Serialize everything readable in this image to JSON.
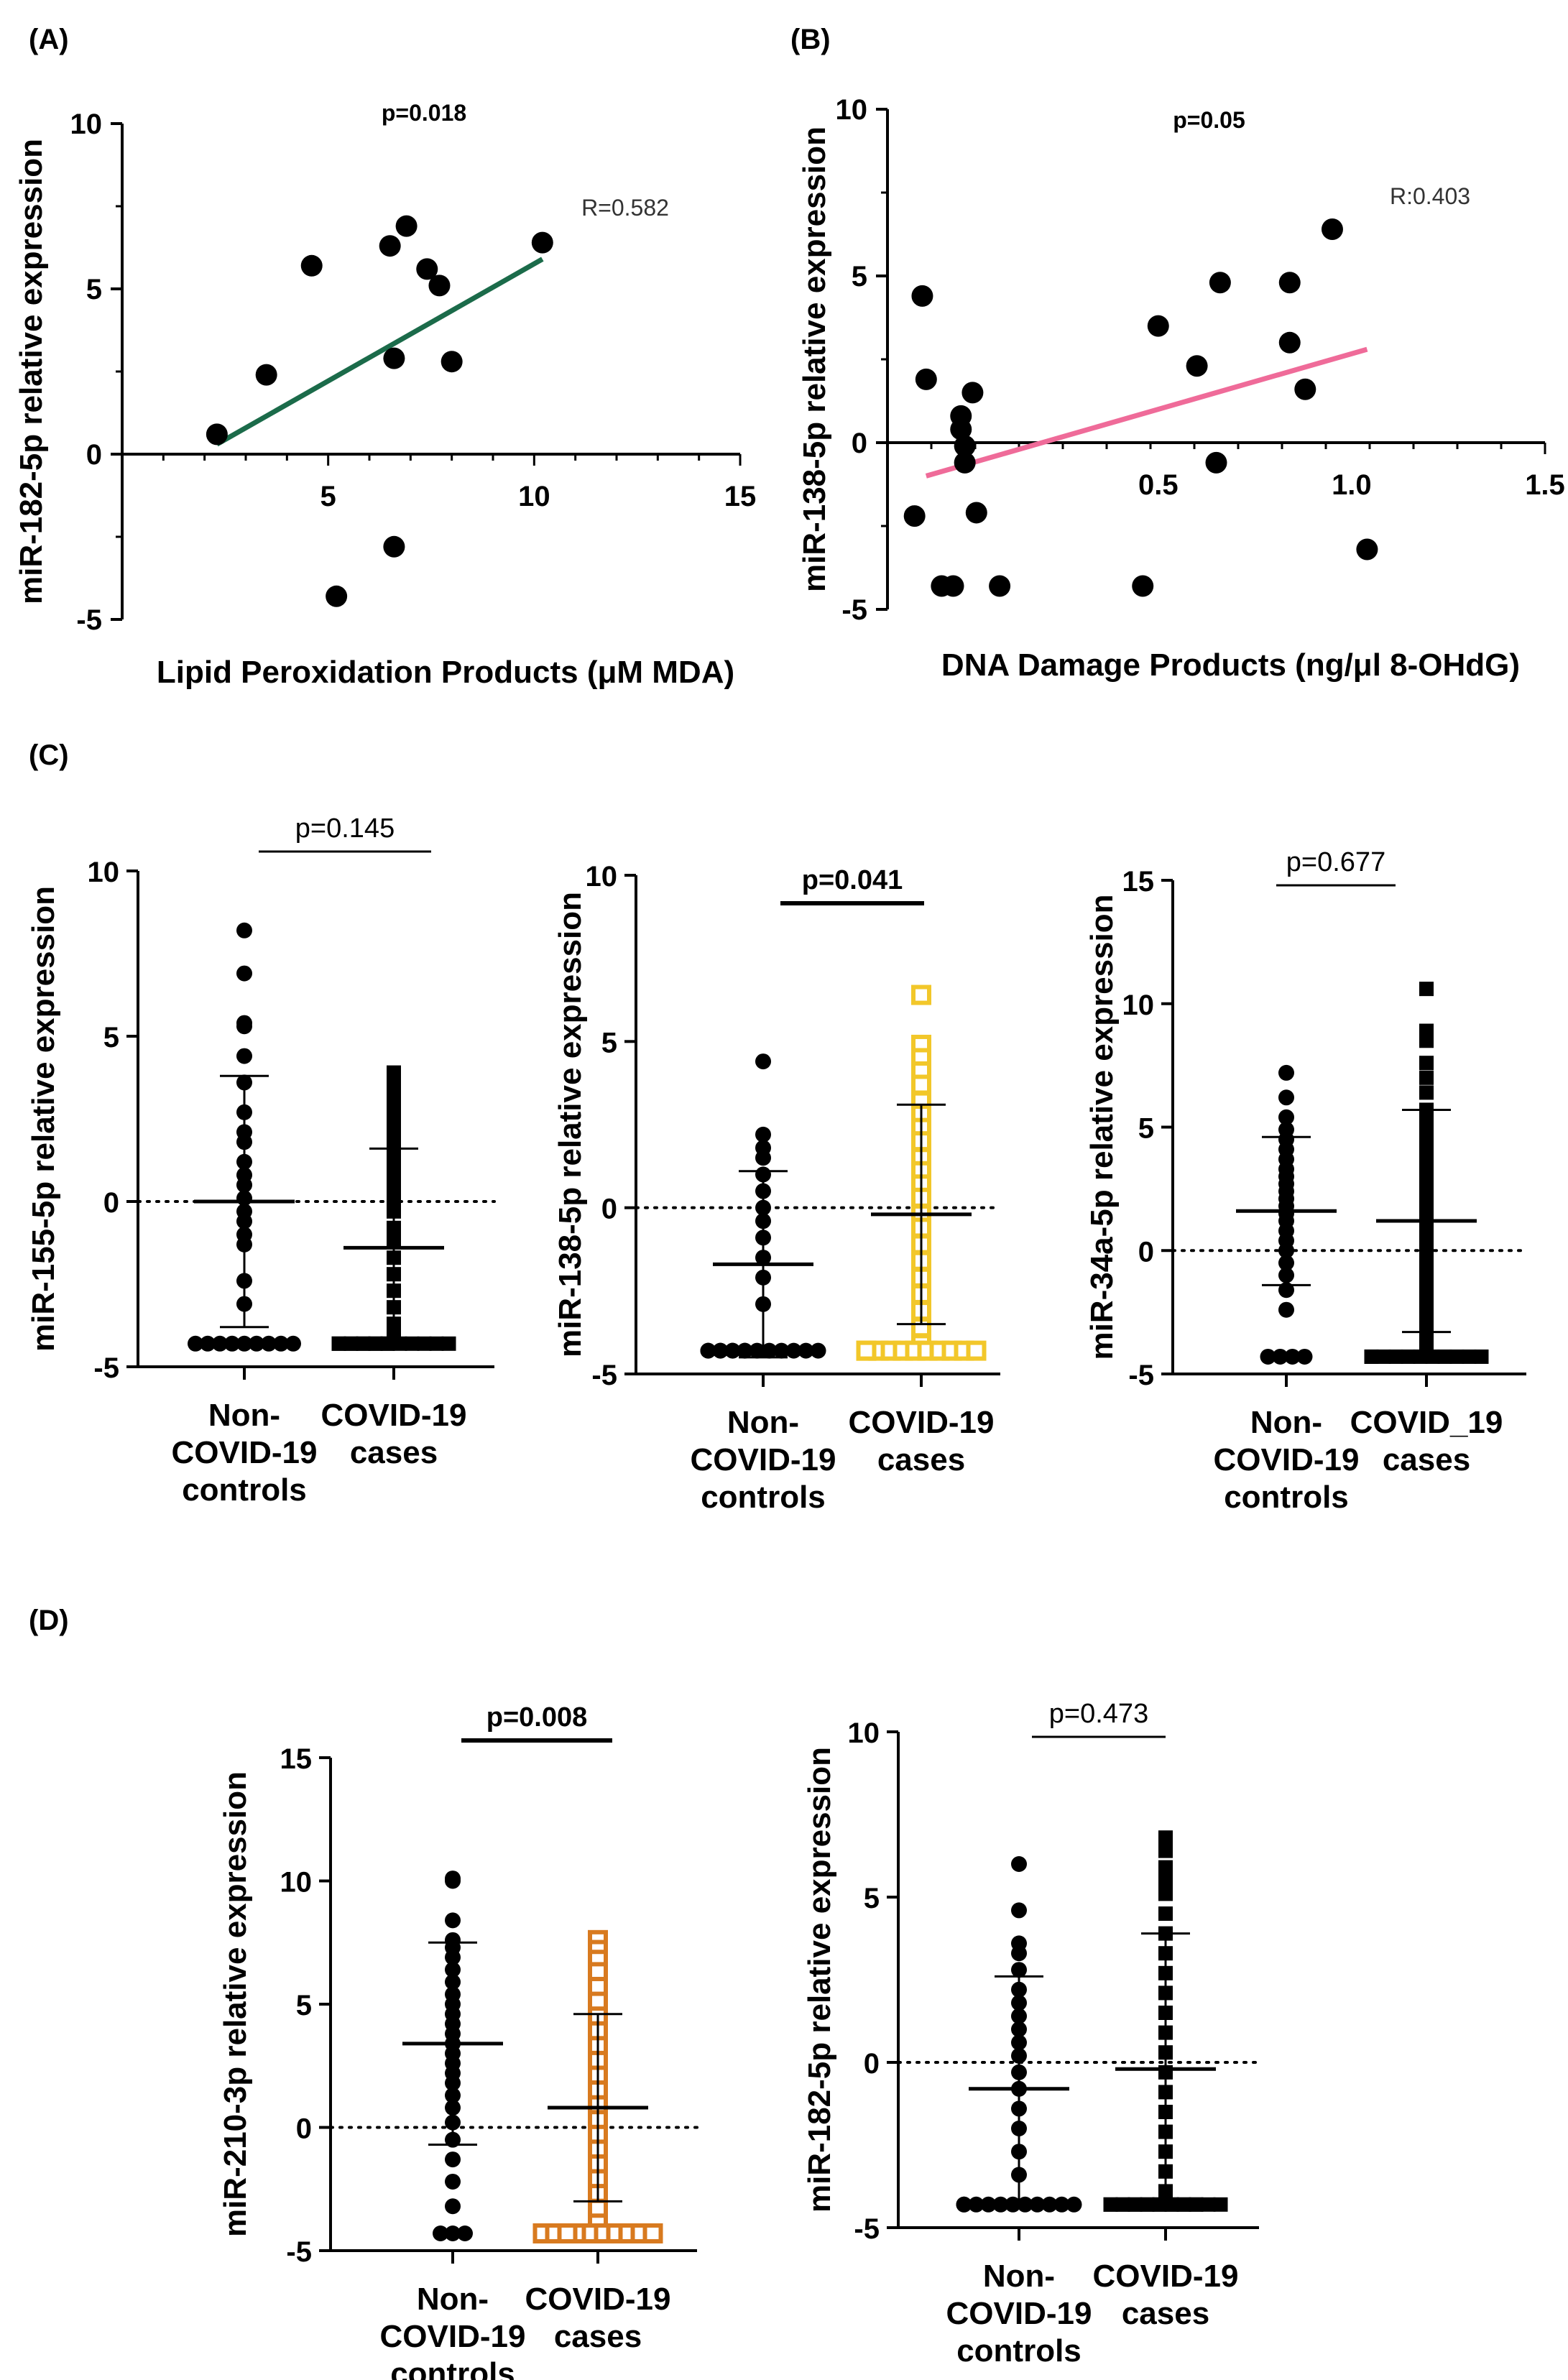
{
  "panel_labels": {
    "a": "(A)",
    "b": "(B)",
    "c": "(C)",
    "d": "(D)"
  },
  "chart_data": [
    {
      "id": "A",
      "type": "scatter",
      "title": "p=0.018",
      "annotation": "R=0.582",
      "xlabel": "Lipid Peroxidation Products (μM MDA)",
      "ylabel": "miR-182-5p relative expression",
      "xlim": [
        0,
        15
      ],
      "ylim": [
        -5,
        10
      ],
      "xticks": [
        5,
        10,
        15
      ],
      "xtick_labels": [
        "5",
        "10",
        "15"
      ],
      "yticks": [
        -5,
        0,
        5,
        10
      ],
      "ytick_labels": [
        "-5",
        "0",
        "5",
        "10"
      ],
      "x": [
        2.3,
        3.5,
        4.6,
        5.2,
        6.5,
        6.6,
        6.6,
        6.9,
        7.4,
        7.7,
        8.0,
        10.2
      ],
      "y": [
        0.6,
        2.4,
        5.7,
        -4.3,
        6.3,
        2.9,
        -2.8,
        6.9,
        5.6,
        5.1,
        2.8,
        6.4
      ],
      "fit_line": {
        "x": [
          2.3,
          10.2
        ],
        "y": [
          0.3,
          5.9
        ],
        "color": "#1b6b4a"
      }
    },
    {
      "id": "B",
      "type": "scatter",
      "title": "p=0.05",
      "annotation": "R:0.403",
      "xlabel": "DNA Damage Products (ng/μl 8-OHdG)",
      "ylabel": "miR-138-5p relative expression",
      "xlim": [
        -0.2,
        1.5
      ],
      "ylim": [
        -5,
        10
      ],
      "xticks": [
        0.5,
        1.0,
        1.5
      ],
      "xtick_labels": [
        "0.5",
        "1.0",
        "1.5"
      ],
      "yticks": [
        -5,
        0,
        5,
        10
      ],
      "ytick_labels": [
        "-5",
        "0",
        "5",
        "10"
      ],
      "x": [
        -0.13,
        -0.11,
        -0.1,
        -0.06,
        -0.03,
        -0.01,
        -0.01,
        0.0,
        0.0,
        0.02,
        0.03,
        0.09,
        0.46,
        0.5,
        0.6,
        0.65,
        0.66,
        0.84,
        0.84,
        0.88,
        0.95,
        1.04
      ],
      "y": [
        -2.2,
        4.4,
        1.9,
        -4.3,
        -4.3,
        0.8,
        0.4,
        -0.1,
        -0.6,
        1.5,
        -2.1,
        -4.3,
        -4.3,
        3.5,
        2.3,
        -0.6,
        4.8,
        4.8,
        3.0,
        1.6,
        6.4,
        -3.2
      ],
      "fit_line": {
        "x": [
          -0.1,
          1.04
        ],
        "y": [
          -1.0,
          2.8
        ],
        "color": "#ef6b99"
      }
    },
    {
      "id": "C1",
      "type": "dotplot",
      "p_label": "p=0.145",
      "p_bold": false,
      "ylabel": "miR-155-5p relative expression",
      "ylim": [
        -5,
        10
      ],
      "yticks": [
        -5,
        0,
        5,
        10
      ],
      "ytick_labels": [
        "-5",
        "0",
        "5",
        "10"
      ],
      "groups": [
        {
          "label": [
            "Non-",
            "COVID-19",
            "controls"
          ],
          "marker": "circle",
          "color": "#000000",
          "mean": 0.0,
          "sd": 3.8,
          "values": [
            8.2,
            6.9,
            5.4,
            5.3,
            4.4,
            3.6,
            2.7,
            2.1,
            1.8,
            1.2,
            0.8,
            0.5,
            0.1,
            -0.3,
            -0.6,
            -1.0,
            -1.3,
            -2.4,
            -3.1,
            -4.3,
            -4.3,
            -4.3,
            -4.3,
            -4.3,
            -4.3,
            -4.3,
            -4.3,
            -4.3
          ]
        },
        {
          "label": [
            "COVID-19",
            "cases"
          ],
          "marker": "square",
          "color": "#000000",
          "mean": -1.4,
          "sd": 3.0,
          "values": [
            3.9,
            3.6,
            3.2,
            2.8,
            2.5,
            2.1,
            1.7,
            1.3,
            0.9,
            0.5,
            0.1,
            -0.3,
            -0.8,
            -1.2,
            -1.7,
            -2.2,
            -2.7,
            -3.2,
            -3.7,
            -4.0,
            -4.3,
            -4.3,
            -4.3,
            -4.3,
            -4.3,
            -4.3,
            -4.3,
            -4.3,
            -4.3,
            -4.3,
            -4.3,
            -4.3,
            -4.3,
            -4.3,
            -4.3
          ]
        }
      ]
    },
    {
      "id": "C2",
      "type": "dotplot",
      "p_label": "p=0.041",
      "p_bold": true,
      "ylabel": "miR-138-5p relative expression",
      "ylim": [
        -5,
        10
      ],
      "yticks": [
        -5,
        0,
        5,
        10
      ],
      "ytick_labels": [
        "-5",
        "0",
        "5",
        "10"
      ],
      "groups": [
        {
          "label": [
            "Non-",
            "COVID-19",
            "controls"
          ],
          "marker": "circle",
          "color": "#000000",
          "mean": -1.7,
          "sd": 2.8,
          "values": [
            4.4,
            2.2,
            1.8,
            1.5,
            1.0,
            0.5,
            0.0,
            -0.4,
            -0.9,
            -1.5,
            -2.1,
            -2.9,
            -4.3,
            -4.3,
            -4.3,
            -4.3,
            -4.3,
            -4.3,
            -4.3,
            -4.3,
            -4.3,
            -4.3,
            -4.3,
            -4.3,
            -4.3,
            -4.3
          ]
        },
        {
          "label": [
            "COVID-19",
            "cases"
          ],
          "marker": "open-square",
          "color": "#f2c72a",
          "mean": -0.2,
          "sd": 3.3,
          "values": [
            6.4,
            4.9,
            4.5,
            4.1,
            3.7,
            3.2,
            2.8,
            2.4,
            2.0,
            1.5,
            1.1,
            0.7,
            0.3,
            -0.2,
            -0.6,
            -1.1,
            -1.6,
            -2.1,
            -2.6,
            -3.1,
            -3.6,
            -4.1,
            -4.3,
            -4.3,
            -4.3,
            -4.3,
            -4.3,
            -4.3,
            -4.3,
            -4.3,
            -4.3,
            -4.3,
            -4.3
          ]
        }
      ]
    },
    {
      "id": "C3",
      "type": "dotplot",
      "p_label": "p=0.677",
      "p_bold": false,
      "ylabel": "miR-34a-5p relative expression",
      "ylim": [
        -5,
        15
      ],
      "yticks": [
        -5,
        0,
        5,
        10,
        15
      ],
      "ytick_labels": [
        "-5",
        "0",
        "5",
        "10",
        "15"
      ],
      "groups": [
        {
          "label": [
            "Non-",
            "COVID-19",
            "controls"
          ],
          "marker": "circle",
          "color": "#000000",
          "mean": 1.6,
          "sd": 3.0,
          "values": [
            7.2,
            6.2,
            5.4,
            4.9,
            4.5,
            4.1,
            3.7,
            3.3,
            3.0,
            2.7,
            2.4,
            2.1,
            1.8,
            1.5,
            1.2,
            0.8,
            0.4,
            0.0,
            -0.5,
            -1.0,
            -1.6,
            -2.4,
            -4.3,
            -4.3,
            -4.3,
            -4.3
          ]
        },
        {
          "label": [
            "COVID_19",
            "cases"
          ],
          "marker": "square",
          "color": "#000000",
          "mean": 1.2,
          "sd": 4.5,
          "values": [
            10.6,
            8.9,
            8.5,
            7.6,
            7.0,
            6.4,
            5.7,
            5.2,
            4.7,
            4.2,
            3.7,
            3.2,
            2.7,
            2.2,
            1.7,
            1.2,
            0.7,
            0.2,
            -0.3,
            -0.8,
            -1.3,
            -1.8,
            -2.3,
            -2.8,
            -3.3,
            -3.8,
            -4.1,
            -4.3,
            -4.3,
            -4.3,
            -4.3,
            -4.3,
            -4.3,
            -4.3,
            -4.3,
            -4.3,
            -4.3,
            -4.3
          ]
        }
      ]
    },
    {
      "id": "D1",
      "type": "dotplot",
      "p_label": "p=0.008",
      "p_bold": true,
      "ylabel": "miR-210-3p relative expression",
      "ylim": [
        -5,
        15
      ],
      "yticks": [
        -5,
        0,
        5,
        10,
        15
      ],
      "ytick_labels": [
        "-5",
        "0",
        "5",
        "10",
        "15"
      ],
      "groups": [
        {
          "label": [
            "Non-",
            "COVID-19",
            "controls"
          ],
          "marker": "circle",
          "color": "#000000",
          "mean": 3.4,
          "sd": 4.1,
          "values": [
            10.1,
            10.0,
            8.4,
            7.6,
            7.3,
            6.9,
            6.4,
            5.9,
            5.4,
            5.0,
            4.6,
            4.2,
            3.8,
            3.4,
            3.0,
            2.6,
            2.2,
            1.8,
            1.3,
            0.8,
            0.2,
            -0.5,
            -1.3,
            -2.2,
            -3.2,
            -4.3,
            -4.3,
            -4.3
          ]
        },
        {
          "label": [
            "COVID-19",
            "cases"
          ],
          "marker": "open-square",
          "color": "#d87a1f",
          "mean": 0.8,
          "sd": 3.8,
          "values": [
            7.6,
            7.2,
            6.8,
            6.3,
            5.7,
            5.1,
            4.5,
            3.9,
            3.3,
            2.7,
            2.1,
            1.5,
            0.9,
            0.3,
            -0.3,
            -0.9,
            -1.5,
            -2.1,
            -2.7,
            -3.3,
            -3.9,
            -4.3,
            -4.3,
            -4.3,
            -4.3,
            -4.3,
            -4.3,
            -4.3,
            -4.3,
            -4.3,
            -4.3,
            -4.3,
            -4.3,
            -4.3
          ]
        }
      ]
    },
    {
      "id": "D2",
      "type": "dotplot",
      "p_label": "p=0.473",
      "p_bold": false,
      "ylabel": "miR-182-5p relative expression",
      "ylim": [
        -5,
        10
      ],
      "yticks": [
        -5,
        0,
        5,
        10
      ],
      "ytick_labels": [
        "-5",
        "0",
        "5",
        "10"
      ],
      "groups": [
        {
          "label": [
            "Non-",
            "COVID-19",
            "controls"
          ],
          "marker": "circle",
          "color": "#000000",
          "mean": -0.8,
          "sd": 3.4,
          "values": [
            6.0,
            4.6,
            3.6,
            3.3,
            2.8,
            2.2,
            1.8,
            1.4,
            1.0,
            0.6,
            0.2,
            -0.3,
            -0.8,
            -1.4,
            -2.0,
            -2.7,
            -3.4,
            -4.3,
            -4.3,
            -4.3,
            -4.3,
            -4.3,
            -4.3,
            -4.3,
            -4.3,
            -4.3,
            -4.3,
            -4.3
          ]
        },
        {
          "label": [
            "COVID-19",
            "cases"
          ],
          "marker": "square",
          "color": "#000000",
          "mean": -0.2,
          "sd": 4.1,
          "values": [
            6.8,
            6.4,
            5.9,
            5.5,
            5.1,
            4.5,
            3.9,
            3.3,
            2.7,
            2.1,
            1.5,
            0.9,
            0.3,
            -0.3,
            -0.9,
            -1.5,
            -2.1,
            -2.7,
            -3.3,
            -3.9,
            -4.3,
            -4.3,
            -4.3,
            -4.3,
            -4.3,
            -4.3,
            -4.3,
            -4.3,
            -4.3,
            -4.3,
            -4.3,
            -4.3,
            -4.3,
            -4.3,
            -4.3,
            -4.3,
            -4.3,
            -4.3
          ]
        }
      ]
    }
  ]
}
